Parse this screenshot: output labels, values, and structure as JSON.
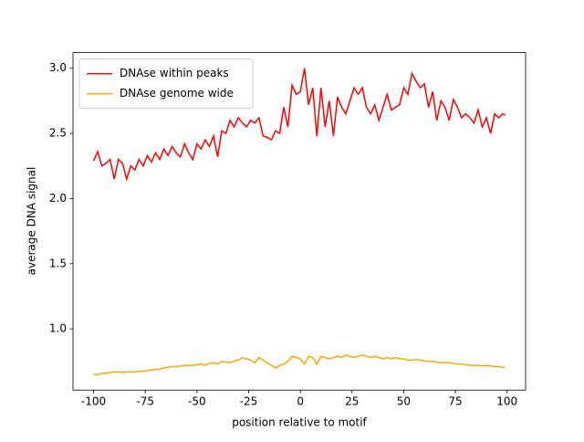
{
  "chart_data": {
    "type": "line",
    "xlabel": "position relative to motif",
    "ylabel": "average DNA signal",
    "x": [
      -100,
      -98,
      -96,
      -94,
      -92,
      -90,
      -88,
      -86,
      -84,
      -82,
      -80,
      -78,
      -76,
      -74,
      -72,
      -70,
      -68,
      -66,
      -64,
      -62,
      -60,
      -58,
      -56,
      -54,
      -52,
      -50,
      -48,
      -46,
      -44,
      -42,
      -40,
      -38,
      -36,
      -34,
      -32,
      -30,
      -28,
      -26,
      -24,
      -22,
      -20,
      -18,
      -16,
      -14,
      -12,
      -10,
      -8,
      -6,
      -4,
      -2,
      0,
      2,
      4,
      6,
      8,
      10,
      12,
      14,
      16,
      18,
      20,
      22,
      24,
      26,
      28,
      30,
      32,
      34,
      36,
      38,
      40,
      42,
      44,
      46,
      48,
      50,
      52,
      54,
      56,
      58,
      60,
      62,
      64,
      66,
      68,
      70,
      72,
      74,
      76,
      78,
      80,
      82,
      84,
      86,
      88,
      90,
      92,
      94,
      96,
      98,
      99
    ],
    "series": [
      {
        "name": "DNAse within peaks",
        "color": "#ff0000",
        "values": [
          2.29,
          2.36,
          2.25,
          2.27,
          2.3,
          2.15,
          2.3,
          2.27,
          2.15,
          2.25,
          2.22,
          2.3,
          2.25,
          2.33,
          2.28,
          2.35,
          2.3,
          2.38,
          2.33,
          2.4,
          2.35,
          2.32,
          2.42,
          2.35,
          2.3,
          2.42,
          2.38,
          2.45,
          2.4,
          2.48,
          2.32,
          2.52,
          2.5,
          2.6,
          2.55,
          2.62,
          2.58,
          2.55,
          2.6,
          2.58,
          2.62,
          2.48,
          2.47,
          2.45,
          2.52,
          2.5,
          2.7,
          2.55,
          2.87,
          2.8,
          2.82,
          3.0,
          2.72,
          2.85,
          2.48,
          2.85,
          2.55,
          2.75,
          2.48,
          2.78,
          2.7,
          2.65,
          2.75,
          2.85,
          2.8,
          2.85,
          2.7,
          2.65,
          2.72,
          2.6,
          2.7,
          2.8,
          2.68,
          2.7,
          2.72,
          2.85,
          2.8,
          2.96,
          2.9,
          2.85,
          2.88,
          2.7,
          2.82,
          2.6,
          2.75,
          2.7,
          2.6,
          2.76,
          2.7,
          2.62,
          2.65,
          2.62,
          2.58,
          2.68,
          2.55,
          2.62,
          2.5,
          2.65,
          2.62,
          2.65,
          2.64
        ]
      },
      {
        "name": "DNAse genome wide",
        "color": "#ffa500",
        "values": [
          0.65,
          0.65,
          0.66,
          0.66,
          0.665,
          0.67,
          0.67,
          0.665,
          0.67,
          0.67,
          0.67,
          0.675,
          0.675,
          0.68,
          0.685,
          0.69,
          0.69,
          0.7,
          0.705,
          0.71,
          0.71,
          0.715,
          0.72,
          0.72,
          0.72,
          0.725,
          0.73,
          0.72,
          0.735,
          0.74,
          0.73,
          0.75,
          0.745,
          0.74,
          0.755,
          0.76,
          0.78,
          0.77,
          0.76,
          0.74,
          0.78,
          0.76,
          0.74,
          0.72,
          0.7,
          0.72,
          0.73,
          0.75,
          0.79,
          0.78,
          0.77,
          0.73,
          0.79,
          0.78,
          0.73,
          0.79,
          0.78,
          0.77,
          0.78,
          0.79,
          0.78,
          0.8,
          0.79,
          0.78,
          0.79,
          0.8,
          0.79,
          0.78,
          0.79,
          0.78,
          0.77,
          0.78,
          0.77,
          0.78,
          0.77,
          0.77,
          0.76,
          0.76,
          0.765,
          0.76,
          0.755,
          0.75,
          0.75,
          0.745,
          0.74,
          0.74,
          0.74,
          0.735,
          0.73,
          0.73,
          0.725,
          0.72,
          0.72,
          0.72,
          0.715,
          0.72,
          0.715,
          0.71,
          0.71,
          0.705,
          0.705
        ]
      }
    ],
    "xlim": [
      -109.95,
      108.95
    ],
    "xticks": [
      -100,
      -75,
      -50,
      -25,
      0,
      25,
      50,
      75,
      100
    ],
    "ylim": [
      0.53,
      3.12
    ],
    "yticks": [
      {
        "value": 1,
        "label": "1.0"
      },
      1.5,
      {
        "value": 2,
        "label": "2.0"
      },
      2.5,
      {
        "value": 3,
        "label": "3.0"
      }
    ],
    "legend": "upper left"
  }
}
